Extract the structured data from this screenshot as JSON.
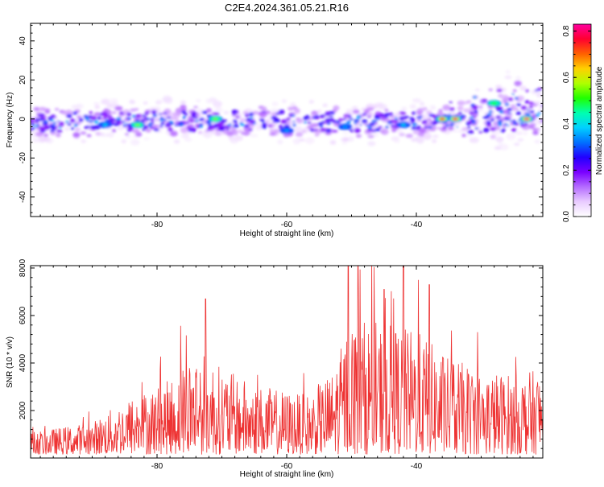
{
  "title": "C2E4.2024.361.05.21.R16",
  "chart_data": [
    {
      "type": "heatmap",
      "xlabel": "Height of straight line (km)",
      "ylabel": "Frequency (Hz)",
      "xlim": [
        -99.5,
        -20.5
      ],
      "ylim": [
        -50,
        49
      ],
      "xticks": [
        -80,
        -60,
        -40
      ],
      "yticks": [
        -40,
        -20,
        0,
        20,
        40
      ],
      "colorbar": {
        "label": "Normalized spectral amplitude",
        "range": [
          0,
          0.83
        ],
        "ticks": [
          0.0,
          0.2,
          0.4,
          0.6,
          0.8
        ],
        "colors": [
          "#ffffff",
          "#e9ccff",
          "#b56cff",
          "#7a00ff",
          "#2200ff",
          "#0070ff",
          "#00d0ff",
          "#00ffb0",
          "#20ff00",
          "#b0ff00",
          "#ffd000",
          "#ff6000",
          "#ff0030",
          "#ff00a0"
        ]
      },
      "band": {
        "center": [
          {
            "x": -99.5,
            "y": -2
          },
          {
            "x": -80,
            "y": -1
          },
          {
            "x": -60,
            "y": -1
          },
          {
            "x": -45,
            "y": -2
          },
          {
            "x": -35,
            "y": -1
          },
          {
            "x": -28,
            "y": 0
          },
          {
            "x": -20.5,
            "y": 2
          }
        ],
        "half_width_hz": 6
      },
      "hotspots": [
        {
          "x": -88,
          "y": -3,
          "v": 0.4
        },
        {
          "x": -83,
          "y": -3,
          "v": 0.55
        },
        {
          "x": -71,
          "y": 0,
          "v": 0.55
        },
        {
          "x": -60,
          "y": -6,
          "v": 0.35
        },
        {
          "x": -51,
          "y": -4,
          "v": 0.35
        },
        {
          "x": -42,
          "y": -3,
          "v": 0.4
        },
        {
          "x": -36,
          "y": 0,
          "v": 0.75
        },
        {
          "x": -34,
          "y": 0,
          "v": 0.8
        },
        {
          "x": -28,
          "y": 8,
          "v": 0.5
        },
        {
          "x": -23,
          "y": 0,
          "v": 0.82
        }
      ]
    },
    {
      "type": "line",
      "xlabel": "Height of straight line (km)",
      "ylabel": "SNR (10 * v/v)",
      "xlim": [
        -99.5,
        -20.5
      ],
      "ylim": [
        0,
        8100
      ],
      "xticks": [
        -80,
        -60,
        -40
      ],
      "yticks": [
        2000,
        4000,
        6000,
        8000
      ],
      "color": "#ee3333",
      "envelope": [
        {
          "x": -99.5,
          "y": 900
        },
        {
          "x": -90,
          "y": 1300
        },
        {
          "x": -85,
          "y": 2200
        },
        {
          "x": -78,
          "y": 3000
        },
        {
          "x": -74,
          "y": 4300
        },
        {
          "x": -70,
          "y": 3500
        },
        {
          "x": -65,
          "y": 2800
        },
        {
          "x": -57,
          "y": 2400
        },
        {
          "x": -53,
          "y": 3300
        },
        {
          "x": -50,
          "y": 5500
        },
        {
          "x": -44,
          "y": 5200
        },
        {
          "x": -40,
          "y": 5000
        },
        {
          "x": -35,
          "y": 3900
        },
        {
          "x": -30,
          "y": 3400
        },
        {
          "x": -24,
          "y": 3200
        },
        {
          "x": -20.5,
          "y": 3500
        }
      ],
      "peaks": [
        {
          "x": -72.5,
          "y": 6700
        },
        {
          "x": -50.5,
          "y": 8100
        },
        {
          "x": -49,
          "y": 8100
        },
        {
          "x": -42,
          "y": 8100
        },
        {
          "x": -38,
          "y": 7300
        },
        {
          "x": -45,
          "y": 7100
        }
      ]
    }
  ]
}
